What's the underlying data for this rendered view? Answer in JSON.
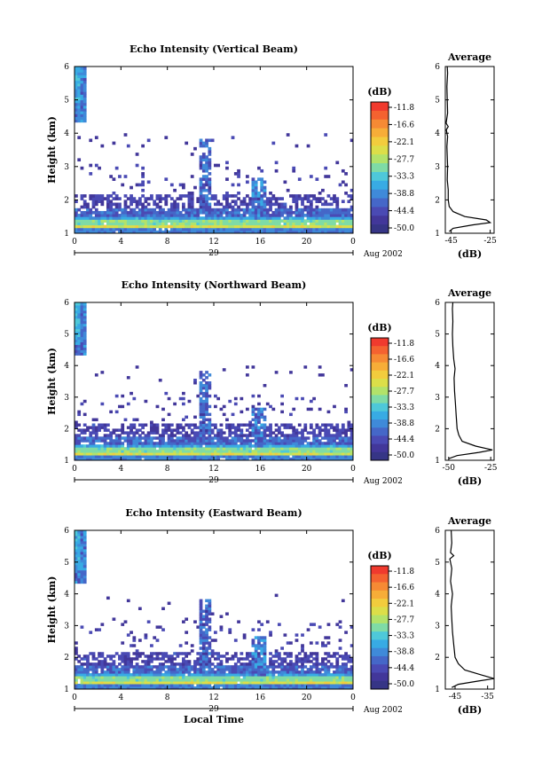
{
  "colorbar": {
    "unit_label": "(dB)",
    "tick_labels": [
      "-11.8",
      "-16.6",
      "-22.1",
      "-27.7",
      "-33.3",
      "-38.8",
      "-44.4",
      "-50.0"
    ],
    "colors": [
      "#f03a2e",
      "#f46230",
      "#f68a34",
      "#f7ad38",
      "#f2cc3d",
      "#dcde49",
      "#b2e26a",
      "#7fdba6",
      "#4ec8d9",
      "#38abe4",
      "#3f8ad9",
      "#4567c8",
      "#4a4ab4",
      "#42379a",
      "#363586"
    ]
  },
  "shared": {
    "xticks": [
      "0",
      "4",
      "8",
      "12",
      "16",
      "20",
      "0"
    ],
    "date_day": "29",
    "date_label": "Aug 2002",
    "xlabel": "Local Time",
    "avg_title": "Average",
    "avg_unit": "(dB)"
  },
  "chart_data": [
    {
      "type": "heatmap",
      "title": "Echo Intensity (Vertical Beam)",
      "ylabel": "Height (km)",
      "yticks": [
        "1",
        "2",
        "3",
        "4",
        "5",
        "6"
      ],
      "xlim": [
        0,
        24
      ],
      "ylim": [
        1,
        6
      ],
      "avg_xticks": [
        "-45",
        "-25"
      ],
      "avg_xlim": [
        -48,
        -23
      ],
      "avg_profile": [
        {
          "h": 1.05,
          "v": -46
        },
        {
          "h": 1.15,
          "v": -44
        },
        {
          "h": 1.25,
          "v": -34
        },
        {
          "h": 1.32,
          "v": -25
        },
        {
          "h": 1.4,
          "v": -27
        },
        {
          "h": 1.5,
          "v": -38
        },
        {
          "h": 1.65,
          "v": -44
        },
        {
          "h": 1.8,
          "v": -46
        },
        {
          "h": 2.0,
          "v": -46.5
        },
        {
          "h": 2.3,
          "v": -46.5
        },
        {
          "h": 2.6,
          "v": -47
        },
        {
          "h": 3.0,
          "v": -46.8
        },
        {
          "h": 3.3,
          "v": -47
        },
        {
          "h": 3.6,
          "v": -47.2
        },
        {
          "h": 3.9,
          "v": -46.8
        },
        {
          "h": 4.1,
          "v": -47.5
        },
        {
          "h": 4.2,
          "v": -46.5
        },
        {
          "h": 4.3,
          "v": -47.6
        },
        {
          "h": 4.6,
          "v": -46.8
        },
        {
          "h": 5.0,
          "v": -47
        },
        {
          "h": 5.4,
          "v": -47.2
        },
        {
          "h": 5.8,
          "v": -46.8
        },
        {
          "h": 6.0,
          "v": -47
        }
      ]
    },
    {
      "type": "heatmap",
      "title": "Echo Intensity (Northward Beam)",
      "ylabel": "Height (km)",
      "yticks": [
        "1",
        "2",
        "3",
        "4",
        "5",
        "6"
      ],
      "xlim": [
        0,
        24
      ],
      "ylim": [
        1,
        6
      ],
      "avg_xticks": [
        "-50",
        "-25"
      ],
      "avg_xlim": [
        -52,
        -23
      ],
      "avg_profile": [
        {
          "h": 1.05,
          "v": -50
        },
        {
          "h": 1.15,
          "v": -45
        },
        {
          "h": 1.25,
          "v": -32
        },
        {
          "h": 1.33,
          "v": -24
        },
        {
          "h": 1.45,
          "v": -34
        },
        {
          "h": 1.6,
          "v": -42
        },
        {
          "h": 1.8,
          "v": -44
        },
        {
          "h": 2.0,
          "v": -45
        },
        {
          "h": 2.4,
          "v": -45.5
        },
        {
          "h": 2.8,
          "v": -46
        },
        {
          "h": 3.2,
          "v": -46.5
        },
        {
          "h": 3.6,
          "v": -46.8
        },
        {
          "h": 3.9,
          "v": -46.2
        },
        {
          "h": 4.2,
          "v": -47
        },
        {
          "h": 4.6,
          "v": -47.5
        },
        {
          "h": 5.0,
          "v": -47.8
        },
        {
          "h": 5.4,
          "v": -47.5
        },
        {
          "h": 5.8,
          "v": -47.8
        },
        {
          "h": 6.0,
          "v": -47.5
        }
      ]
    },
    {
      "type": "heatmap",
      "title": "Echo Intensity (Eastward Beam)",
      "ylabel": "Height (km)",
      "xlabel": "Local Time",
      "yticks": [
        "1",
        "2",
        "3",
        "4",
        "5",
        "6"
      ],
      "xlim": [
        0,
        24
      ],
      "ylim": [
        1,
        6
      ],
      "avg_xticks": [
        "-45",
        "-35"
      ],
      "avg_xlim": [
        -48,
        -33
      ],
      "avg_profile": [
        {
          "h": 1.05,
          "v": -46
        },
        {
          "h": 1.15,
          "v": -44
        },
        {
          "h": 1.25,
          "v": -38
        },
        {
          "h": 1.33,
          "v": -33
        },
        {
          "h": 1.45,
          "v": -37
        },
        {
          "h": 1.6,
          "v": -42
        },
        {
          "h": 1.8,
          "v": -44
        },
        {
          "h": 2.0,
          "v": -45
        },
        {
          "h": 2.4,
          "v": -45.4
        },
        {
          "h": 2.8,
          "v": -45.8
        },
        {
          "h": 3.2,
          "v": -46
        },
        {
          "h": 3.6,
          "v": -46.2
        },
        {
          "h": 4.0,
          "v": -45.8
        },
        {
          "h": 4.4,
          "v": -46.4
        },
        {
          "h": 4.8,
          "v": -46
        },
        {
          "h": 5.1,
          "v": -46.6
        },
        {
          "h": 5.2,
          "v": -45.4
        },
        {
          "h": 5.3,
          "v": -46.4
        },
        {
          "h": 5.6,
          "v": -46
        },
        {
          "h": 6.0,
          "v": -46.2
        }
      ]
    }
  ]
}
